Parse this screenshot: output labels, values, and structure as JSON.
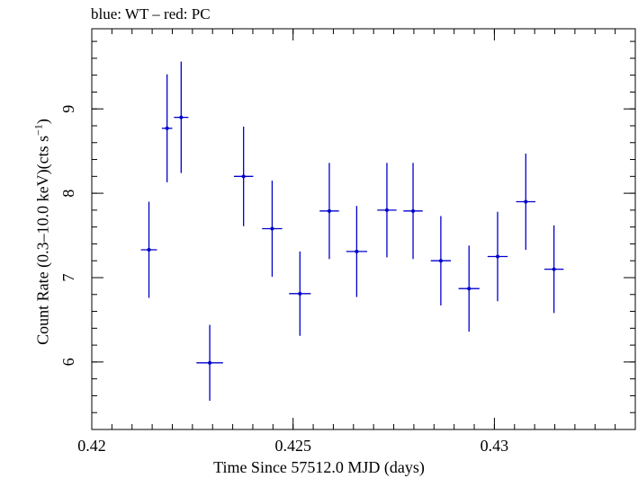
{
  "chart_data": {
    "type": "scatter",
    "title": "blue: WT – red: PC",
    "xlabel": "Time Since 57512.0 MJD (days)",
    "ylabel": {
      "prefix": "Count Rate (0.3–10.0 keV)(cts s",
      "superscript": "−1",
      "suffix": ")"
    },
    "xlim": [
      0.42,
      0.4335
    ],
    "ylim": [
      5.2,
      9.95
    ],
    "xticks": [
      0.42,
      0.425,
      0.43
    ],
    "xtick_labels": [
      "0.42",
      "0.425",
      "0.43"
    ],
    "xminor_step": 0.0005,
    "yticks": [
      6,
      7,
      8,
      9
    ],
    "ytick_labels": [
      "6",
      "7",
      "8",
      "9"
    ],
    "yminor_step": 0.2,
    "grid": false,
    "series": [
      {
        "color": "#0000cc",
        "points": [
          {
            "x": 0.42142,
            "xerr": 0.0002,
            "y": 7.33,
            "yerr": 0.57
          },
          {
            "x": 0.42187,
            "xerr": 0.00013,
            "y": 8.77,
            "yerr": 0.64
          },
          {
            "x": 0.42222,
            "xerr": 0.00018,
            "y": 8.9,
            "yerr": 0.66
          },
          {
            "x": 0.42293,
            "xerr": 0.00033,
            "y": 5.99,
            "yerr": 0.45
          },
          {
            "x": 0.42377,
            "xerr": 0.00024,
            "y": 8.2,
            "yerr": 0.59
          },
          {
            "x": 0.42448,
            "xerr": 0.00025,
            "y": 7.58,
            "yerr": 0.57
          },
          {
            "x": 0.42517,
            "xerr": 0.00027,
            "y": 6.81,
            "yerr": 0.5
          },
          {
            "x": 0.4259,
            "xerr": 0.00024,
            "y": 7.79,
            "yerr": 0.57
          },
          {
            "x": 0.42658,
            "xerr": 0.00026,
            "y": 7.31,
            "yerr": 0.54
          },
          {
            "x": 0.42733,
            "xerr": 0.00024,
            "y": 7.8,
            "yerr": 0.56
          },
          {
            "x": 0.42798,
            "xerr": 0.00024,
            "y": 7.79,
            "yerr": 0.57
          },
          {
            "x": 0.42867,
            "xerr": 0.00025,
            "y": 7.2,
            "yerr": 0.53
          },
          {
            "x": 0.42937,
            "xerr": 0.00026,
            "y": 6.87,
            "yerr": 0.51
          },
          {
            "x": 0.43008,
            "xerr": 0.00025,
            "y": 7.25,
            "yerr": 0.53
          },
          {
            "x": 0.43078,
            "xerr": 0.00024,
            "y": 7.9,
            "yerr": 0.57
          },
          {
            "x": 0.43148,
            "xerr": 0.00024,
            "y": 7.1,
            "yerr": 0.52
          }
        ]
      }
    ]
  }
}
